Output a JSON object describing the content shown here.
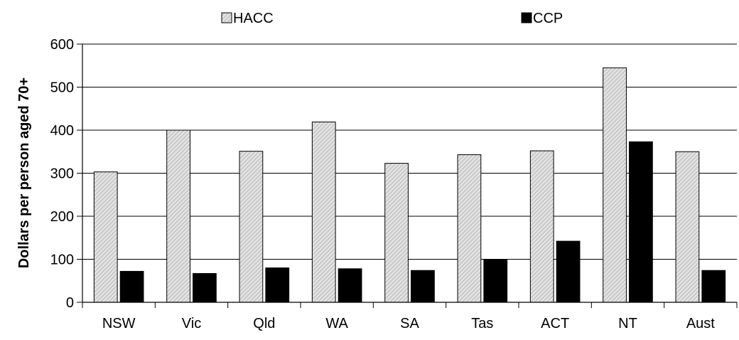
{
  "chart_data": {
    "type": "bar",
    "title": "",
    "xlabel": "",
    "ylabel": "Dollars per person aged 70+",
    "categories": [
      "NSW",
      "Vic",
      "Qld",
      "WA",
      "SA",
      "Tas",
      "ACT",
      "NT",
      "Aust"
    ],
    "series": [
      {
        "name": "HACC",
        "values": [
          303,
          400,
          351,
          419,
          323,
          343,
          352,
          545,
          350
        ],
        "color": "#d9d9d9",
        "pattern": "diagonal-hatch"
      },
      {
        "name": "CCP",
        "values": [
          72,
          67,
          80,
          78,
          74,
          100,
          142,
          373,
          74
        ],
        "color": "#000000",
        "pattern": "solid"
      }
    ],
    "ylim": [
      0,
      600
    ],
    "yticks": [
      0,
      100,
      200,
      300,
      400,
      500,
      600
    ],
    "grid": "horizontal",
    "legend": "top"
  }
}
